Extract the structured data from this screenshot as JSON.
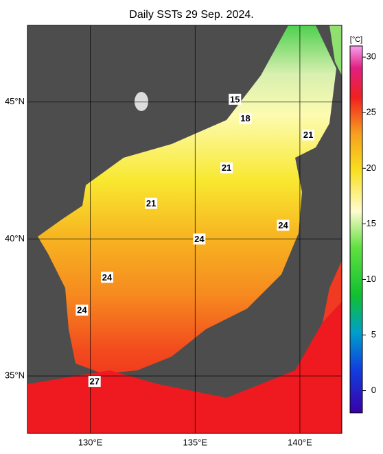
{
  "title": "Daily SSTs 29 Sep. 2024.",
  "map": {
    "lon_range": [
      127,
      142
    ],
    "lat_range": [
      32.9,
      47.8
    ],
    "lon_ticks": [
      {
        "value": 130,
        "label": "130°E"
      },
      {
        "value": 135,
        "label": "135°E"
      },
      {
        "value": 140,
        "label": "140°E"
      }
    ],
    "lat_ticks": [
      {
        "value": 35,
        "label": "35°N"
      },
      {
        "value": 40,
        "label": "40°N"
      },
      {
        "value": 45,
        "label": "45°N"
      }
    ]
  },
  "colorbar": {
    "unit": "[°C]",
    "range": [
      -2,
      31
    ],
    "ticks": [
      0,
      5,
      10,
      15,
      20,
      25,
      30
    ]
  },
  "contour_labels": [
    {
      "value": 15,
      "lon": 136.9,
      "lat": 45.1
    },
    {
      "value": 18,
      "lon": 137.4,
      "lat": 44.4
    },
    {
      "value": 21,
      "lon": 140.4,
      "lat": 43.8
    },
    {
      "value": 21,
      "lon": 136.5,
      "lat": 42.6
    },
    {
      "value": 21,
      "lon": 132.9,
      "lat": 41.3
    },
    {
      "value": 24,
      "lon": 139.2,
      "lat": 40.5
    },
    {
      "value": 24,
      "lon": 135.2,
      "lat": 40.0
    },
    {
      "value": 24,
      "lon": 130.8,
      "lat": 38.6
    },
    {
      "value": 24,
      "lon": 129.6,
      "lat": 37.4
    },
    {
      "value": 27,
      "lon": 130.2,
      "lat": 34.8
    }
  ]
}
